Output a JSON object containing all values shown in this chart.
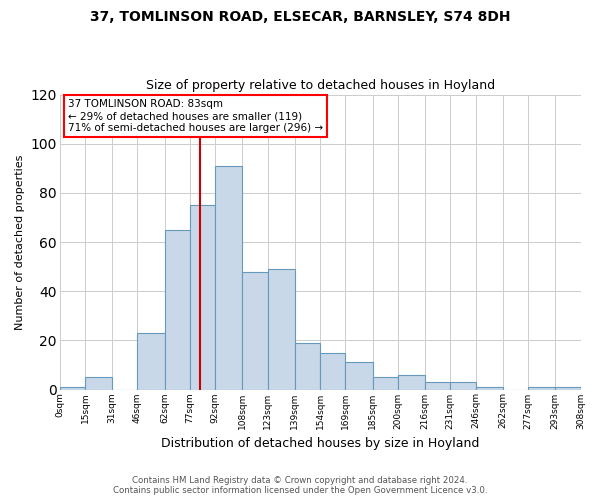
{
  "title1": "37, TOMLINSON ROAD, ELSECAR, BARNSLEY, S74 8DH",
  "title2": "Size of property relative to detached houses in Hoyland",
  "xlabel": "Distribution of detached houses by size in Hoyland",
  "ylabel": "Number of detached properties",
  "annotation_line1": "37 TOMLINSON ROAD: 83sqm",
  "annotation_line2": "← 29% of detached houses are smaller (119)",
  "annotation_line3": "71% of semi-detached houses are larger (296) →",
  "property_size": 83,
  "bin_edges": [
    0,
    15,
    31,
    46,
    62,
    77,
    92,
    108,
    123,
    139,
    154,
    169,
    185,
    200,
    216,
    231,
    246,
    262,
    277,
    293,
    308
  ],
  "bar_heights": [
    1,
    5,
    0,
    23,
    65,
    75,
    91,
    48,
    49,
    19,
    15,
    11,
    5,
    6,
    3,
    3,
    1,
    0,
    1,
    1
  ],
  "bar_color": "#c8d8e8",
  "bar_edge_color": "#6699bb",
  "line_color": "#cc0000",
  "ylim": [
    0,
    120
  ],
  "yticks": [
    0,
    20,
    40,
    60,
    80,
    100,
    120
  ],
  "tick_labels": [
    "0sqm",
    "15sqm",
    "31sqm",
    "46sqm",
    "62sqm",
    "77sqm",
    "92sqm",
    "108sqm",
    "123sqm",
    "139sqm",
    "154sqm",
    "169sqm",
    "185sqm",
    "200sqm",
    "216sqm",
    "231sqm",
    "246sqm",
    "262sqm",
    "277sqm",
    "293sqm",
    "308sqm"
  ],
  "footer1": "Contains HM Land Registry data © Crown copyright and database right 2024.",
  "footer2": "Contains public sector information licensed under the Open Government Licence v3.0.",
  "bg_color": "#ffffff",
  "grid_color": "#cccccc"
}
